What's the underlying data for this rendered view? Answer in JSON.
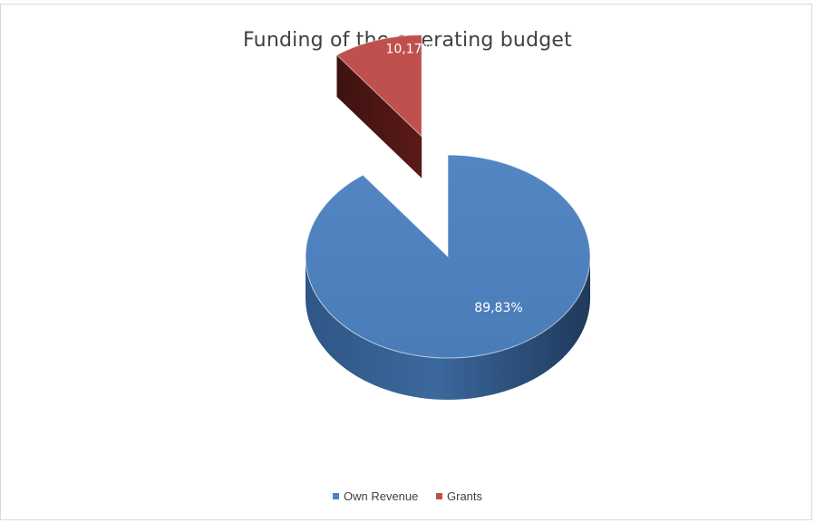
{
  "chart_data": {
    "type": "pie",
    "title": "Funding of the operating budget",
    "slices": [
      {
        "name": "Own Revenue",
        "value": 89.83,
        "label": "89,83%",
        "color": "#4f81bd"
      },
      {
        "name": "Grants",
        "value": 10.17,
        "label": "10,17%",
        "color": "#c0504d"
      }
    ],
    "legend_position": "bottom",
    "style": "3d-exploded"
  }
}
